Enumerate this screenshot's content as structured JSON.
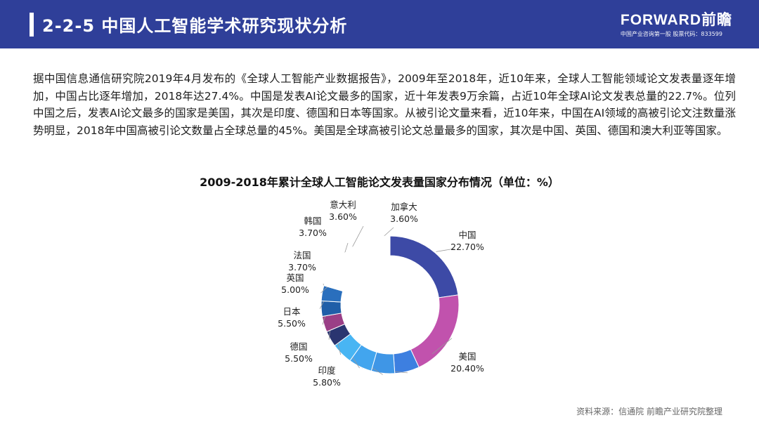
{
  "header": {
    "title": "2-2-5 中国人工智能学术研究现状分析",
    "brand_name": "FORWARD前瞻",
    "brand_sub": "中国产业咨询第一股 股票代码：833599"
  },
  "paragraph": "据中国信息通信研究院2019年4月发布的《全球人工智能产业数据报告》，2009年至2018年，近10年来，全球人工智能领域论文发表量逐年增加，中国占比逐年增加，2018年达27.4%。中国是发表AI论文最多的国家，近十年发表9万余篇，占近10年全球AI论文发表总量的22.7%。位列中国之后，发表AI论文最多的国家是美国，其次是印度、德国和日本等国家。从被引论文量来看，近10年来，中国在AI领域的高被引论文注数量涨势明显，2018年中国高被引论文数量占全球总量的45%。美国是全球高被引论文总量最多的国家，其次是中国、英国、德国和澳大利亚等国家。",
  "chart_data": {
    "type": "pie",
    "variant": "donut",
    "title": "2009-2018年累计全球人工智能论文发表量国家分布情况（单位：%）",
    "slices": [
      {
        "name": "中国",
        "value": 22.7,
        "label": "22.70%",
        "color": "#3d4aa6"
      },
      {
        "name": "美国",
        "value": 20.4,
        "label": "20.40%",
        "color": "#c152ad"
      },
      {
        "name": "印度",
        "value": 5.8,
        "label": "5.80%",
        "color": "#3d7fe0"
      },
      {
        "name": "德国",
        "value": 5.5,
        "label": "5.50%",
        "color": "#3f96e6"
      },
      {
        "name": "日本",
        "value": 5.5,
        "label": "5.50%",
        "color": "#42a5ee"
      },
      {
        "name": "英国",
        "value": 5.0,
        "label": "5.00%",
        "color": "#48b5f3"
      },
      {
        "name": "法国",
        "value": 3.7,
        "label": "3.70%",
        "color": "#2a3570"
      },
      {
        "name": "韩国",
        "value": 3.7,
        "label": "3.70%",
        "color": "#9a3f86"
      },
      {
        "name": "意大利",
        "value": 3.6,
        "label": "3.60%",
        "color": "#1f5ea8"
      },
      {
        "name": "加拿大",
        "value": 3.6,
        "label": "3.60%",
        "color": "#2a6fbd"
      },
      {
        "name": "",
        "value": 20.5,
        "label": "",
        "color": "#ffffff"
      }
    ]
  },
  "source": "资料来源：信通院 前瞻产业研究院整理"
}
